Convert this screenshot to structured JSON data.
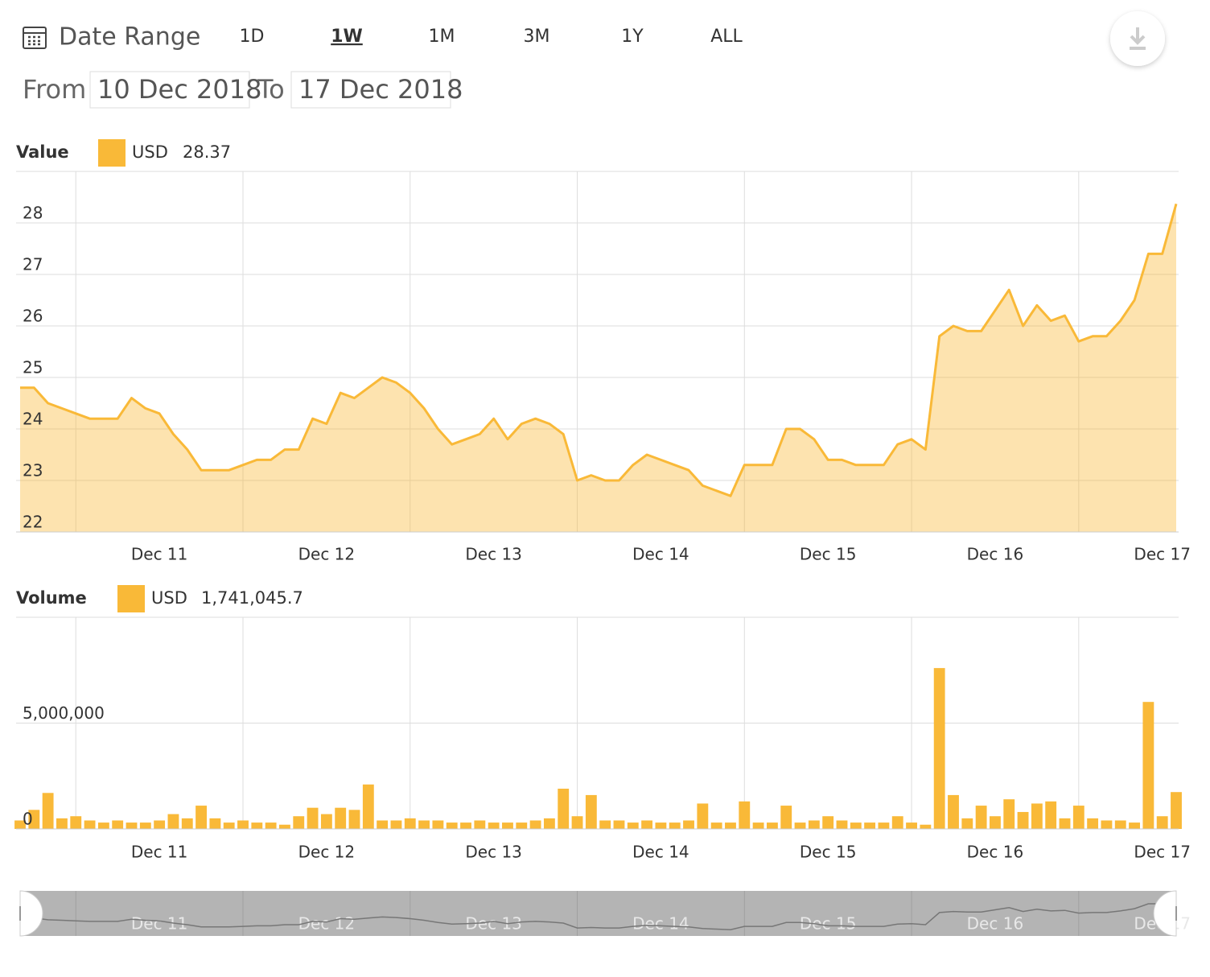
{
  "controls": {
    "label": "Date Range",
    "ranges": [
      "1D",
      "1W",
      "1M",
      "3M",
      "1Y",
      "ALL"
    ],
    "selected_index": 1,
    "from_label": "From",
    "from": "10 Dec 2018",
    "to_label": "To",
    "to": "17 Dec 2018"
  },
  "chart_data": [
    {
      "type": "area",
      "title": "Value",
      "categories": [
        null,
        null,
        null,
        null,
        null,
        null,
        null,
        null,
        null,
        null,
        "Dec 11",
        null,
        null,
        null,
        null,
        null,
        null,
        null,
        null,
        null,
        null,
        null,
        "Dec 12",
        null,
        null,
        null,
        null,
        null,
        null,
        null,
        null,
        null,
        null,
        null,
        "Dec 13",
        null,
        null,
        null,
        null,
        null,
        null,
        null,
        null,
        null,
        null,
        null,
        "Dec 14",
        null,
        null,
        null,
        null,
        null,
        null,
        null,
        null,
        null,
        null,
        null,
        "Dec 15",
        null,
        null,
        null,
        null,
        null,
        null,
        null,
        null,
        null,
        null,
        null,
        "Dec 16",
        null,
        null,
        null,
        null,
        null,
        null,
        null,
        null,
        null,
        null,
        null,
        "Dec 17",
        null
      ],
      "series": [
        {
          "name": "USD",
          "color": "#f9b938",
          "values": [
            24.8,
            24.8,
            24.5,
            24.4,
            24.3,
            24.2,
            24.2,
            24.2,
            24.6,
            24.4,
            24.3,
            23.9,
            23.6,
            23.2,
            23.2,
            23.2,
            23.3,
            23.4,
            23.4,
            23.6,
            23.6,
            24.2,
            24.1,
            24.7,
            24.6,
            24.8,
            25,
            24.9,
            24.7,
            24.4,
            24.0,
            23.7,
            23.8,
            23.9,
            24.2,
            23.8,
            24.1,
            24.2,
            24.1,
            23.9,
            23.0,
            23.1,
            23.0,
            23.0,
            23.3,
            23.5,
            23.4,
            23.3,
            23.2,
            22.9,
            22.8,
            22.7,
            23.3,
            23.3,
            23.3,
            24.0,
            24.0,
            23.8,
            23.4,
            23.4,
            23.3,
            23.3,
            23.3,
            23.7,
            23.8,
            23.6,
            25.8,
            26.0,
            25.9,
            25.9,
            26.3,
            26.7,
            26.0,
            26.4,
            26.1,
            26.2,
            25.7,
            25.8,
            25.8,
            26.1,
            26.5,
            27.4,
            27.4,
            28.37
          ]
        }
      ],
      "ylim": [
        22,
        29
      ],
      "yticks": [
        22,
        23,
        24,
        25,
        26,
        27,
        28
      ],
      "grid": true
    },
    {
      "type": "bar",
      "title": "Volume",
      "categories": [
        null,
        null,
        null,
        null,
        null,
        null,
        null,
        null,
        null,
        null,
        "Dec 11",
        null,
        null,
        null,
        null,
        null,
        null,
        null,
        null,
        null,
        null,
        null,
        "Dec 12",
        null,
        null,
        null,
        null,
        null,
        null,
        null,
        null,
        null,
        null,
        null,
        "Dec 13",
        null,
        null,
        null,
        null,
        null,
        null,
        null,
        null,
        null,
        null,
        null,
        "Dec 14",
        null,
        null,
        null,
        null,
        null,
        null,
        null,
        null,
        null,
        null,
        null,
        "Dec 15",
        null,
        null,
        null,
        null,
        null,
        null,
        null,
        null,
        null,
        null,
        null,
        "Dec 16",
        null,
        null,
        null,
        null,
        null,
        null,
        null,
        null,
        null,
        null,
        null,
        "Dec 17",
        null
      ],
      "series": [
        {
          "name": "USD",
          "color": "#f9b938",
          "values": [
            400000,
            900000,
            1700000,
            500000,
            600000,
            400000,
            300000,
            400000,
            300000,
            300000,
            400000,
            700000,
            500000,
            1100000,
            500000,
            300000,
            400000,
            300000,
            300000,
            200000,
            600000,
            1000000,
            700000,
            1000000,
            900000,
            2100000,
            400000,
            400000,
            500000,
            400000,
            400000,
            300000,
            300000,
            400000,
            300000,
            300000,
            300000,
            400000,
            500000,
            1900000,
            600000,
            1600000,
            400000,
            400000,
            300000,
            400000,
            300000,
            300000,
            400000,
            1200000,
            300000,
            300000,
            1300000,
            300000,
            300000,
            1100000,
            300000,
            400000,
            600000,
            400000,
            300000,
            300000,
            300000,
            600000,
            300000,
            200000,
            7600000,
            1600000,
            500000,
            1100000,
            600000,
            1400000,
            800000,
            1200000,
            1300000,
            500000,
            1100000,
            500000,
            400000,
            400000,
            300000,
            6000000,
            600000,
            1741045.7
          ],
          "value_labels": [
            null,
            null,
            null,
            null,
            null,
            null,
            null,
            null,
            null,
            null,
            null,
            null,
            null,
            null,
            null,
            null,
            null,
            null,
            null,
            null,
            null,
            null,
            null,
            null,
            null,
            null,
            null,
            null,
            null,
            null,
            null,
            null,
            null,
            null,
            null,
            null,
            null,
            null,
            null,
            null,
            null,
            null,
            null,
            null,
            null,
            null,
            null,
            null,
            null,
            null,
            null,
            null,
            null,
            null,
            null,
            null,
            null,
            null,
            null,
            null,
            null,
            null,
            null,
            null,
            null,
            null,
            null,
            null,
            null,
            null,
            null,
            null,
            null,
            null,
            null,
            null,
            null,
            null,
            null,
            null,
            null,
            null,
            null,
            "1,741,045.7"
          ]
        }
      ],
      "ylim": [
        0,
        10000000
      ],
      "yticks": [
        0,
        {
          "value": 5000000,
          "label": "5,000,000"
        }
      ],
      "grid": true
    }
  ]
}
